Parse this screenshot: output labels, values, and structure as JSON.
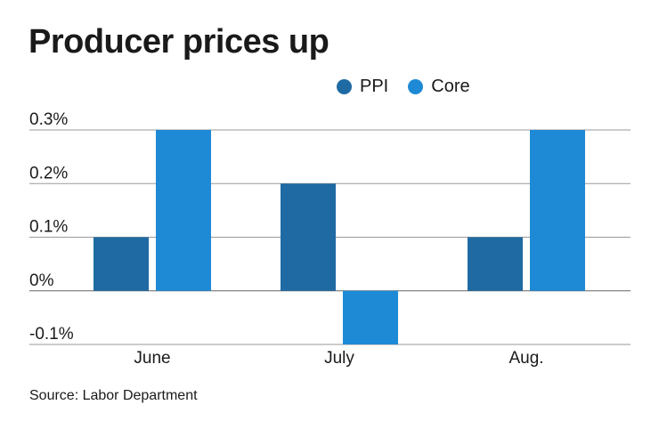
{
  "header": {
    "title": "Producer prices up"
  },
  "legend": [
    {
      "label": "PPI",
      "color": "#1f6aa3"
    },
    {
      "label": "Core",
      "color": "#1e8ad6"
    }
  ],
  "chart_data": {
    "type": "bar",
    "title": "Producer prices up",
    "categories": [
      "June",
      "July",
      "Aug."
    ],
    "series": [
      {
        "name": "PPI",
        "values": [
          0.1,
          0.2,
          0.1
        ],
        "color": "#1f6aa3"
      },
      {
        "name": "Core",
        "values": [
          0.3,
          -0.1,
          0.3
        ],
        "color": "#1e8ad6"
      }
    ],
    "yticks": [
      0.3,
      0.2,
      0.1,
      0,
      -0.1
    ],
    "ytick_labels": [
      "0.3%",
      "0.2%",
      "0.1%",
      "0%",
      "-0.1%"
    ],
    "ylim": [
      -0.1,
      0.3
    ],
    "grid": true,
    "legend_position": "top-right",
    "xlabel": "",
    "ylabel": ""
  },
  "footer": {
    "source": "Source: Labor Department"
  }
}
